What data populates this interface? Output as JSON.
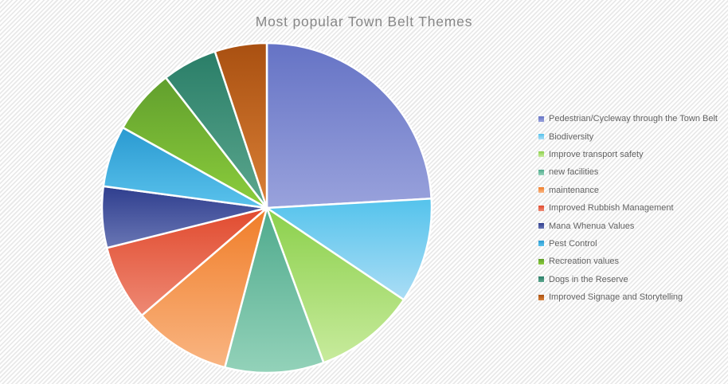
{
  "title": "Most popular Town Belt Themes",
  "colors": {
    "title_text": "#878787",
    "legend_text": "#636363",
    "background_stripe": "#e9e9e9",
    "background_base": "#ffffff",
    "slice_border": "#ffffff"
  },
  "chart_data": {
    "type": "pie",
    "title": "Most popular Town Belt Themes",
    "legend_position": "right",
    "direction": "clockwise",
    "start_angle_deg": 0,
    "categories": [
      "Pedestrian/Cycleway through the Town Belt",
      "Biodiversity",
      "Improve transport safety",
      "new facilities",
      "maintenance",
      "Improved Rubbish Management",
      "Mana Whenua Values",
      "Pest Control",
      "Recreation values",
      "Dogs in the Reserve",
      "Improved Signage and Storytelling"
    ],
    "values_percent": [
      24.1,
      10.3,
      10.0,
      9.7,
      9.6,
      7.4,
      6.0,
      6.0,
      6.4,
      5.4,
      5.1
    ],
    "slice_colors_dark": [
      "#6573c5",
      "#54c3ec",
      "#8bd04b",
      "#4faa8d",
      "#f07d28",
      "#e14a2e",
      "#2f3e8e",
      "#2a9ad1",
      "#619f2d",
      "#2a7e68",
      "#a95011"
    ],
    "slice_colors_light": [
      "#99a2dc",
      "#abddf5",
      "#c8eb9d",
      "#93d2b9",
      "#f9b582",
      "#ee8974",
      "#6976b4",
      "#5ac2ec",
      "#8ccd3c",
      "#5ca78e",
      "#da8036"
    ]
  }
}
